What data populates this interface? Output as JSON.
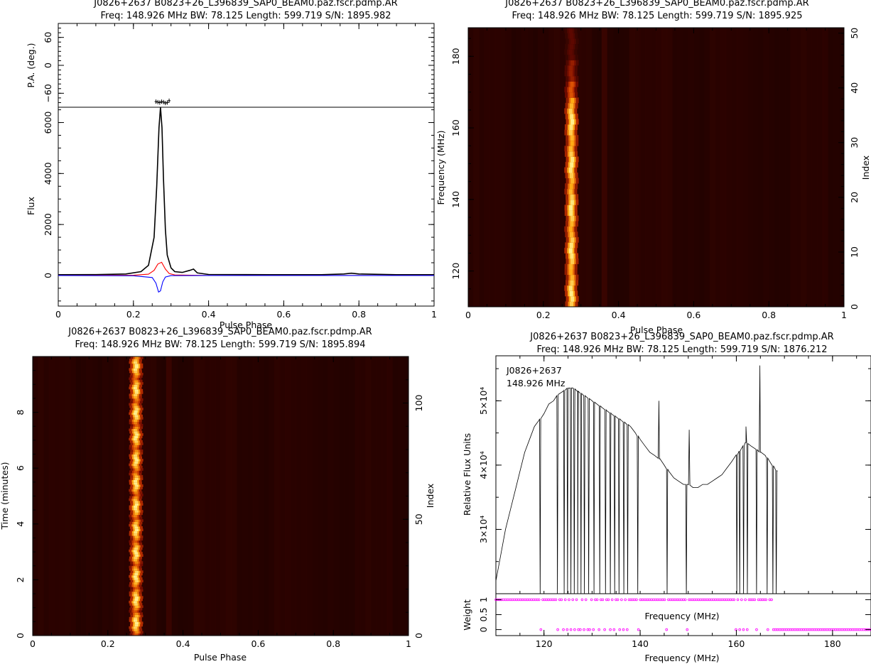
{
  "colors": {
    "total": "#000000",
    "linear": "#ff0000",
    "circular": "#0000ff",
    "weight_points": "#ff00ff",
    "heat_bg": "#200000",
    "heat_peak": "#ffff80"
  },
  "chart_data": [
    {
      "id": "profile",
      "type": "line",
      "title": "J0826+2637 B0823+26_L396839_SAP0_BEAM0.paz.fscr.pdmp.AR",
      "subtitle": "Freq: 148.926 MHz BW: 78.125 Length: 599.719 S/N: 1895.982",
      "xlabel": "Pulse Phase",
      "xlim": [
        0,
        1
      ],
      "x_ticks": [
        "0",
        "0.2",
        "0.4",
        "0.6",
        "0.8",
        "1"
      ],
      "pa_panel": {
        "ylabel": "P.A. (deg.)",
        "ylim": [
          -90,
          90
        ],
        "y_ticks": [
          "60",
          "0",
          "−60"
        ],
        "x": [
          0.26,
          0.265,
          0.27,
          0.275,
          0.28,
          0.285,
          0.29,
          0.295
        ],
        "y": [
          -78,
          -79,
          -80,
          -78,
          -79,
          -81,
          -80,
          -76
        ]
      },
      "flux_panel": {
        "ylabel": "Flux",
        "ylim": [
          -1200,
          6600
        ],
        "y_ticks": [
          "0",
          "2000",
          "4000",
          "6000"
        ],
        "series": [
          {
            "key": "total",
            "x": [
              0,
              0.1,
              0.18,
              0.22,
              0.24,
              0.255,
              0.262,
              0.268,
              0.272,
              0.276,
              0.28,
              0.285,
              0.29,
              0.3,
              0.31,
              0.33,
              0.35,
              0.36,
              0.37,
              0.4,
              0.5,
              0.6,
              0.7,
              0.76,
              0.78,
              0.8,
              0.9,
              1
            ],
            "y": [
              30,
              35,
              60,
              150,
              400,
              1500,
              3500,
              5800,
              6600,
              5800,
              3800,
              1800,
              800,
              300,
              150,
              120,
              200,
              250,
              100,
              40,
              35,
              30,
              30,
              60,
              90,
              60,
              30,
              30
            ]
          },
          {
            "key": "linear",
            "x": [
              0,
              0.2,
              0.24,
              0.255,
              0.265,
              0.275,
              0.285,
              0.295,
              0.31,
              0.4,
              1
            ],
            "y": [
              0,
              10,
              50,
              200,
              450,
              520,
              250,
              80,
              20,
              0,
              0
            ]
          },
          {
            "key": "circular",
            "x": [
              0,
              0.2,
              0.25,
              0.26,
              0.267,
              0.272,
              0.278,
              0.285,
              0.3,
              0.4,
              1
            ],
            "y": [
              0,
              -10,
              -80,
              -300,
              -650,
              -600,
              -250,
              -60,
              -5,
              0,
              0
            ]
          }
        ]
      }
    },
    {
      "id": "freq-phase",
      "type": "heatmap",
      "title": "J0826+2637 B0823+26_L396839_SAP0_BEAM0.paz.fscr.pdmp.AR",
      "subtitle": "Freq: 148.926 MHz BW: 78.125 Length: 599.719 S/N: 1895.925",
      "xlabel": "Pulse Phase",
      "ylabel": "Frequency (MHz)",
      "y2label": "Index",
      "xlim": [
        0,
        1
      ],
      "ylim": [
        110,
        188
      ],
      "y2lim": [
        0,
        51
      ],
      "x_ticks": [
        "0",
        "0.2",
        "0.4",
        "0.6",
        "0.8",
        "1"
      ],
      "y_ticks": [
        "120",
        "140",
        "160",
        "180"
      ],
      "y2_ticks": [
        "0",
        "10",
        "20",
        "30",
        "40",
        "50"
      ],
      "pulse_phase": 0.275
    },
    {
      "id": "time-phase",
      "type": "heatmap",
      "title": "J0826+2637 B0823+26_L396839_SAP0_BEAM0.paz.fscr.pdmp.AR",
      "subtitle": "Freq: 148.926 MHz BW: 78.125 Length: 599.719 S/N: 1895.894",
      "xlabel": "Pulse Phase",
      "ylabel": "Time (minutes)",
      "y2label": "Index",
      "xlim": [
        0,
        1
      ],
      "ylim": [
        0,
        10
      ],
      "y2lim": [
        0,
        120
      ],
      "x_ticks": [
        "0",
        "0.2",
        "0.4",
        "0.6",
        "0.8",
        "1"
      ],
      "y_ticks": [
        "0",
        "2",
        "4",
        "6",
        "8"
      ],
      "y2_ticks": [
        "0",
        "50",
        "100"
      ],
      "pulse_phase": 0.275
    },
    {
      "id": "bandpass",
      "type": "line",
      "title": "J0826+2637 B0823+26_L396839_SAP0_BEAM0.paz.fscr.pdmp.AR",
      "subtitle": "Freq: 148.926 MHz BW: 78.125 Length: 599.719 S/N: 1876.212",
      "annotation_source": "J0826+2637",
      "annotation_freq": "148.926 MHz",
      "xlabel": "Frequency (MHz)",
      "xlim": [
        110,
        188
      ],
      "x_ticks": [
        "120",
        "140",
        "160",
        "180"
      ],
      "flux_panel": {
        "ylabel": "Relative Flux Units",
        "ylim": [
          20000,
          57000
        ],
        "y_ticks": [
          "3×10⁴",
          "4×10⁴",
          "5×10⁴"
        ],
        "x": [
          110,
          111,
          112,
          113,
          114,
          115,
          116,
          117,
          118,
          119,
          120,
          121,
          122,
          123,
          124,
          125,
          126,
          127,
          128,
          129,
          130,
          131,
          132,
          133,
          134,
          135,
          136,
          137,
          138,
          139,
          140,
          141,
          142,
          143,
          144,
          145,
          146,
          147,
          148,
          149,
          150,
          151,
          152,
          153,
          154,
          155,
          156,
          157,
          158,
          159,
          160,
          161,
          162,
          163,
          164,
          165,
          166,
          167,
          168,
          168.5
        ],
        "y": [
          22000,
          26000,
          30000,
          33000,
          36000,
          39000,
          42000,
          44000,
          46000,
          47000,
          48000,
          49500,
          50000,
          51000,
          51500,
          52000,
          52000,
          51500,
          51000,
          50500,
          50000,
          49500,
          49000,
          48500,
          48000,
          47500,
          47000,
          46500,
          46000,
          45000,
          44000,
          43000,
          42000,
          41500,
          41000,
          40000,
          39000,
          38000,
          37500,
          37000,
          37000,
          36500,
          36500,
          37000,
          37000,
          37500,
          38000,
          38500,
          39500,
          40500,
          41500,
          42500,
          43500,
          43000,
          42500,
          42000,
          41500,
          40500,
          39500,
          39000
        ],
        "dropouts": [
          119.2,
          122.8,
          124.2,
          124.9,
          125.6,
          126.3,
          127.0,
          127.7,
          128.4,
          129.3,
          130.4,
          131.6,
          132.8,
          133.8,
          134.7,
          135.6,
          136.6,
          137.4,
          139.5,
          145.6,
          149.6,
          160.1,
          160.7,
          161.5,
          162.3,
          164.2,
          166.4,
          167.6,
          168.3
        ],
        "spikes": [
          [
            143.9,
            50000
          ],
          [
            150.2,
            45500
          ],
          [
            162.0,
            46000
          ],
          [
            164.9,
            55500
          ]
        ]
      },
      "weight_panel": {
        "ylabel": "Weight",
        "ylim": [
          -0.2,
          1.2
        ],
        "y_ticks": [
          "0",
          "0.5",
          "1"
        ],
        "xlabel_inner": "Frequency (MHz)",
        "zero_range": [
          168.5,
          188
        ]
      }
    }
  ]
}
